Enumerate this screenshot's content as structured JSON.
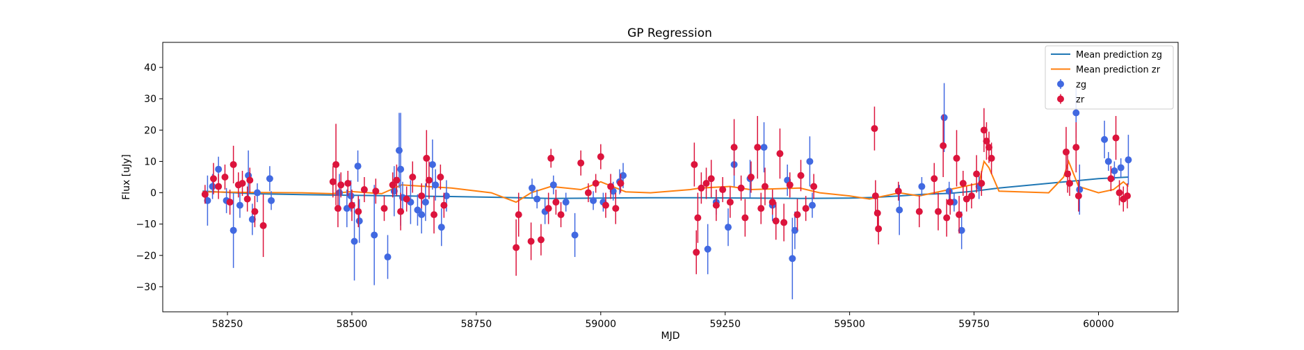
{
  "chart_data": {
    "type": "scatter",
    "title": "GP Regression",
    "xlabel": "MJD",
    "ylabel": "Flux [uJy]",
    "xlim": [
      58120,
      60160
    ],
    "ylim": [
      -38,
      48
    ],
    "xticks": [
      58250,
      58500,
      58750,
      59000,
      59250,
      59500,
      59750,
      60000
    ],
    "yticks": [
      -30,
      -20,
      -10,
      0,
      10,
      20,
      30,
      40
    ],
    "grid": false,
    "legend": {
      "placement": "top-right",
      "entries": [
        {
          "label": "Mean prediction zg",
          "kind": "line",
          "color": "#1f77b4"
        },
        {
          "label": "Mean prediction zr",
          "kind": "line",
          "color": "#ff7f0e"
        },
        {
          "label": "zg",
          "kind": "errorbar",
          "color": "#4169e1"
        },
        {
          "label": "zr",
          "kind": "errorbar",
          "color": "#dc143c"
        }
      ]
    },
    "lines": [
      {
        "name": "Mean prediction zg",
        "color": "#1f77b4",
        "x": [
          58200,
          58300,
          58400,
          58500,
          58600,
          58700,
          58800,
          58900,
          59000,
          59100,
          59200,
          59300,
          59400,
          59500,
          59550,
          59600,
          59650,
          59700,
          59750,
          59800,
          59900,
          60000,
          60060
        ],
        "y": [
          0.5,
          -0.3,
          -0.6,
          -0.8,
          -1.0,
          -1.2,
          -1.5,
          -1.8,
          -1.7,
          -1.6,
          -1.6,
          -1.7,
          -1.8,
          -1.7,
          -1.5,
          -1.0,
          -0.5,
          -0.2,
          0.5,
          1.5,
          3.0,
          4.5,
          5.0
        ]
      },
      {
        "name": "Mean prediction zr",
        "color": "#ff7f0e",
        "x": [
          58200,
          58300,
          58400,
          58460,
          58500,
          58560,
          58600,
          58700,
          58780,
          58830,
          58860,
          58900,
          58960,
          59000,
          59050,
          59100,
          59180,
          59200,
          59260,
          59300,
          59400,
          59440,
          59500,
          59540,
          59600,
          59640,
          59700,
          59760,
          59770,
          59780,
          59800,
          59900,
          59930,
          59940,
          59960,
          60000,
          60030,
          60050,
          60060
        ],
        "y": [
          0.3,
          0.1,
          0.0,
          -0.3,
          0.4,
          -0.3,
          2.5,
          1.5,
          0.0,
          -3.0,
          0.0,
          2.0,
          1.0,
          3.5,
          0.3,
          0.0,
          1.0,
          1.5,
          2.0,
          1.0,
          1.5,
          0.0,
          -1.0,
          -2.0,
          0.0,
          -1.0,
          1.0,
          3.0,
          10.0,
          8.0,
          0.5,
          0.0,
          5.0,
          10.0,
          2.0,
          0.0,
          1.0,
          3.5,
          2.0
        ]
      }
    ],
    "series": [
      {
        "name": "zg",
        "color": "#4169e1",
        "points": [
          [
            58210,
            -2.5,
            8.0
          ],
          [
            58220,
            2.0,
            4.0
          ],
          [
            58232,
            7.5,
            4.0
          ],
          [
            58248,
            -2.5,
            4.0
          ],
          [
            58262,
            -12.0,
            12.0
          ],
          [
            58275,
            -4.0,
            4.0
          ],
          [
            58292,
            5.5,
            8.0
          ],
          [
            58300,
            -8.5,
            5.0
          ],
          [
            58310,
            0.0,
            3.0
          ],
          [
            58335,
            4.5,
            4.0
          ],
          [
            58338,
            -2.5,
            3.0
          ],
          [
            58475,
            0.0,
            6.0
          ],
          [
            58490,
            -5.0,
            6.0
          ],
          [
            58498,
            -1.0,
            5.0
          ],
          [
            58505,
            -15.5,
            12.5
          ],
          [
            58512,
            8.5,
            5.0
          ],
          [
            58515,
            -9.0,
            7.0
          ],
          [
            58545,
            -13.5,
            16.0
          ],
          [
            58572,
            -20.5,
            7.0
          ],
          [
            58585,
            0.5,
            8.0
          ],
          [
            58595,
            13.5,
            12.0
          ],
          [
            58598,
            7.5,
            18.0
          ],
          [
            58602,
            -1.5,
            5.0
          ],
          [
            58618,
            -3.0,
            7.0
          ],
          [
            58632,
            -5.5,
            5.0
          ],
          [
            58640,
            -7.0,
            6.0
          ],
          [
            58648,
            -3.0,
            6.0
          ],
          [
            58662,
            9.0,
            8.0
          ],
          [
            58668,
            2.5,
            5.0
          ],
          [
            58680,
            -11.0,
            6.0
          ],
          [
            58690,
            -1.0,
            5.0
          ],
          [
            58862,
            1.5,
            3.0
          ],
          [
            58872,
            -2.0,
            3.0
          ],
          [
            58888,
            -6.0,
            4.0
          ],
          [
            58905,
            2.5,
            3.0
          ],
          [
            58930,
            -3.0,
            3.0
          ],
          [
            58948,
            -13.5,
            7.0
          ],
          [
            58985,
            -2.5,
            3.0
          ],
          [
            59005,
            -3.0,
            3.0
          ],
          [
            59025,
            0.5,
            3.0
          ],
          [
            59038,
            3.5,
            4.0
          ],
          [
            59045,
            5.5,
            4.0
          ],
          [
            59215,
            -18.0,
            8.0
          ],
          [
            59232,
            -3.0,
            4.0
          ],
          [
            59256,
            -11.0,
            6.0
          ],
          [
            59268,
            9.0,
            7.0
          ],
          [
            59300,
            4.5,
            6.0
          ],
          [
            59328,
            14.5,
            8.0
          ],
          [
            59345,
            -4.0,
            5.0
          ],
          [
            59375,
            4.0,
            5.0
          ],
          [
            59385,
            -21.0,
            13.0
          ],
          [
            59390,
            -12.0,
            6.0
          ],
          [
            59420,
            10.0,
            8.0
          ],
          [
            59425,
            -4.0,
            4.0
          ],
          [
            59600,
            -5.5,
            8.0
          ],
          [
            59645,
            2.0,
            3.0
          ],
          [
            59690,
            24.0,
            11.0
          ],
          [
            59700,
            0.5,
            3.0
          ],
          [
            59710,
            -3.0,
            3.0
          ],
          [
            59725,
            -12.0,
            6.0
          ],
          [
            59760,
            2.0,
            4.0
          ],
          [
            59955,
            25.5,
            8.0
          ],
          [
            59962,
            1.0,
            8.0
          ],
          [
            60012,
            17.0,
            6.0
          ],
          [
            60020,
            10.0,
            3.0
          ],
          [
            60032,
            7.0,
            3.0
          ],
          [
            60045,
            8.0,
            3.0
          ],
          [
            60060,
            10.5,
            8.0
          ]
        ]
      },
      {
        "name": "zr",
        "color": "#dc143c",
        "points": [
          [
            58205,
            -0.5,
            3.0
          ],
          [
            58222,
            4.5,
            5.0
          ],
          [
            58232,
            2.0,
            4.0
          ],
          [
            58245,
            5.0,
            4.0
          ],
          [
            58255,
            -3.0,
            4.0
          ],
          [
            58262,
            9.0,
            6.0
          ],
          [
            58272,
            2.5,
            4.0
          ],
          [
            58280,
            3.0,
            4.0
          ],
          [
            58290,
            -2.0,
            4.0
          ],
          [
            58295,
            4.0,
            4.0
          ],
          [
            58305,
            -6.0,
            5.0
          ],
          [
            58322,
            -10.5,
            10.0
          ],
          [
            58462,
            3.5,
            5.0
          ],
          [
            58468,
            9.0,
            13.0
          ],
          [
            58472,
            -5.0,
            6.0
          ],
          [
            58478,
            2.5,
            4.0
          ],
          [
            58492,
            3.0,
            4.0
          ],
          [
            58500,
            -4.0,
            5.0
          ],
          [
            58513,
            -6.0,
            5.0
          ],
          [
            58525,
            1.0,
            4.0
          ],
          [
            58548,
            0.5,
            4.0
          ],
          [
            58565,
            -5.0,
            4.0
          ],
          [
            58582,
            2.5,
            4.0
          ],
          [
            58590,
            4.0,
            5.0
          ],
          [
            58598,
            -6.0,
            6.0
          ],
          [
            58610,
            -2.0,
            4.0
          ],
          [
            58622,
            5.0,
            5.0
          ],
          [
            58640,
            -1.0,
            4.0
          ],
          [
            58650,
            11.0,
            9.0
          ],
          [
            58655,
            4.0,
            6.0
          ],
          [
            58665,
            -7.0,
            6.0
          ],
          [
            58678,
            5.0,
            4.0
          ],
          [
            58685,
            -4.0,
            4.0
          ],
          [
            58830,
            -17.5,
            9.0
          ],
          [
            58835,
            -7.0,
            7.0
          ],
          [
            58860,
            -15.5,
            6.0
          ],
          [
            58880,
            -15.0,
            5.0
          ],
          [
            58895,
            -5.0,
            5.0
          ],
          [
            58900,
            11.0,
            3.0
          ],
          [
            58910,
            -3.0,
            4.0
          ],
          [
            58920,
            -7.0,
            4.0
          ],
          [
            58960,
            9.5,
            4.0
          ],
          [
            58975,
            0.0,
            3.0
          ],
          [
            58990,
            3.0,
            3.0
          ],
          [
            59000,
            11.5,
            4.0
          ],
          [
            59010,
            -4.0,
            4.0
          ],
          [
            59020,
            2.0,
            4.0
          ],
          [
            59030,
            -5.0,
            5.0
          ],
          [
            59040,
            3.0,
            3.0
          ],
          [
            59188,
            9.0,
            7.0
          ],
          [
            59192,
            -19.0,
            7.0
          ],
          [
            59195,
            -8.0,
            8.0
          ],
          [
            59202,
            1.5,
            5.0
          ],
          [
            59212,
            3.0,
            5.0
          ],
          [
            59222,
            4.5,
            6.0
          ],
          [
            59232,
            -4.0,
            5.0
          ],
          [
            59245,
            1.0,
            4.0
          ],
          [
            59260,
            -3.0,
            5.0
          ],
          [
            59268,
            14.5,
            9.0
          ],
          [
            59282,
            1.5,
            4.0
          ],
          [
            59290,
            -8.0,
            6.0
          ],
          [
            59302,
            5.0,
            5.0
          ],
          [
            59315,
            14.5,
            10.0
          ],
          [
            59322,
            -5.0,
            5.0
          ],
          [
            59330,
            2.0,
            6.0
          ],
          [
            59345,
            -3.0,
            4.0
          ],
          [
            59352,
            -9.0,
            6.0
          ],
          [
            59360,
            12.5,
            8.0
          ],
          [
            59368,
            -9.5,
            6.0
          ],
          [
            59380,
            2.5,
            4.0
          ],
          [
            59395,
            -7.0,
            5.0
          ],
          [
            59402,
            5.5,
            5.0
          ],
          [
            59412,
            -5.0,
            4.0
          ],
          [
            59428,
            2.0,
            4.0
          ],
          [
            59550,
            20.5,
            7.0
          ],
          [
            59552,
            -1.0,
            5.0
          ],
          [
            59556,
            -6.5,
            6.0
          ],
          [
            59558,
            -11.5,
            5.0
          ],
          [
            59598,
            0.5,
            3.0
          ],
          [
            59640,
            -6.0,
            5.0
          ],
          [
            59670,
            4.5,
            5.0
          ],
          [
            59678,
            -6.0,
            6.0
          ],
          [
            59688,
            15.0,
            10.0
          ],
          [
            59695,
            -8.0,
            6.0
          ],
          [
            59702,
            -3.0,
            4.0
          ],
          [
            59715,
            11.0,
            9.0
          ],
          [
            59720,
            -7.0,
            6.0
          ],
          [
            59728,
            3.0,
            4.0
          ],
          [
            59735,
            -2.0,
            4.0
          ],
          [
            59745,
            -1.0,
            4.0
          ],
          [
            59755,
            6.0,
            6.0
          ],
          [
            59765,
            3.0,
            4.0
          ],
          [
            59770,
            20.0,
            7.0
          ],
          [
            59775,
            16.5,
            6.0
          ],
          [
            59780,
            14.5,
            5.0
          ],
          [
            59785,
            11.0,
            5.0
          ],
          [
            59935,
            13.0,
            8.0
          ],
          [
            59938,
            6.0,
            6.0
          ],
          [
            59942,
            3.0,
            4.0
          ],
          [
            59955,
            14.5,
            8.0
          ],
          [
            59960,
            -1.0,
            5.0
          ],
          [
            60025,
            4.5,
            4.0
          ],
          [
            60035,
            17.5,
            7.0
          ],
          [
            60042,
            0.0,
            4.0
          ],
          [
            60050,
            -2.0,
            4.0
          ],
          [
            60058,
            -1.0,
            4.0
          ]
        ]
      }
    ]
  }
}
